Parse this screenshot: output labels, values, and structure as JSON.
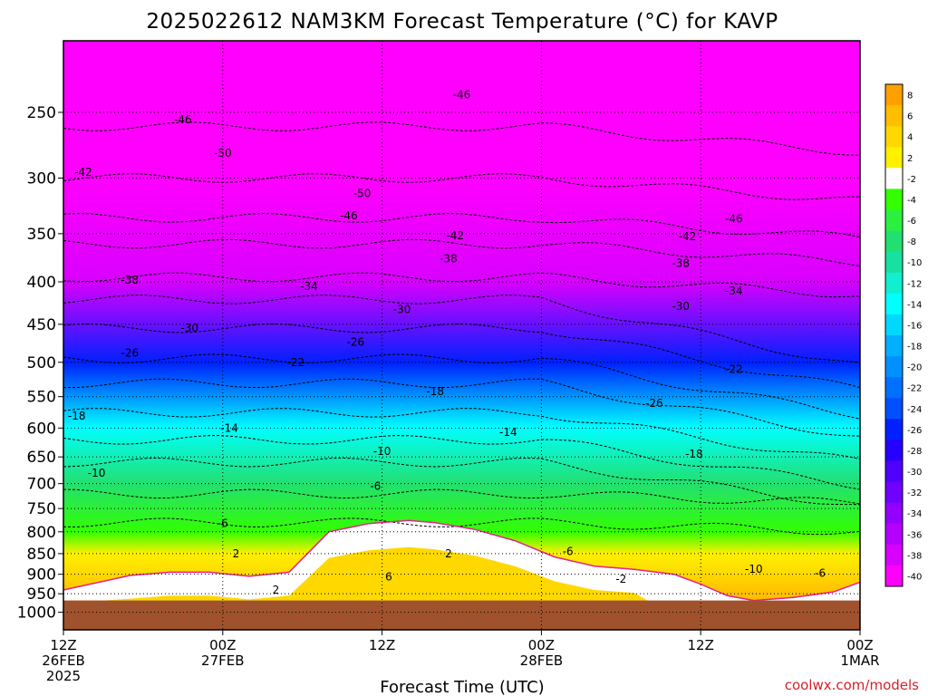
{
  "chart_data": {
    "type": "heatmap",
    "title": "2025022612 NAM3KM Forecast Temperature (°C) for KAVP",
    "xlabel": "Forecast Time (UTC)",
    "ylabel": "",
    "y_axis": {
      "quantity": "pressure (hPa)",
      "scale": "log",
      "inverted": true,
      "range": [
        1050,
        205
      ],
      "ticks": [
        250,
        300,
        350,
        400,
        450,
        500,
        550,
        600,
        650,
        700,
        750,
        800,
        850,
        900,
        950,
        1000
      ]
    },
    "x_axis": {
      "range_hours": [
        0,
        60
      ],
      "ticks": [
        {
          "hour": 0,
          "lines": [
            "12Z",
            "26FEB",
            "2025"
          ]
        },
        {
          "hour": 12,
          "lines": [
            "00Z",
            "27FEB"
          ]
        },
        {
          "hour": 24,
          "lines": [
            "12Z"
          ]
        },
        {
          "hour": 36,
          "lines": [
            "00Z",
            "28FEB"
          ]
        },
        {
          "hour": 48,
          "lines": [
            "12Z"
          ]
        },
        {
          "hour": 60,
          "lines": [
            "00Z",
            "1MAR"
          ]
        }
      ]
    },
    "grid": "dotted",
    "legend": "right colorbar",
    "colorbar": {
      "labels": [
        "8",
        "6",
        "4",
        "2",
        "-2",
        "-4",
        "-6",
        "-8",
        "-10",
        "-12",
        "-14",
        "-16",
        "-18",
        "-20",
        "-22",
        "-24",
        "-26",
        "-28",
        "-30",
        "-32",
        "-34",
        "-36",
        "-38",
        "-40"
      ],
      "colors": [
        "#ffa000",
        "#ffbe00",
        "#ffd800",
        "#fff000",
        "#ffffff",
        "#33ff00",
        "#2cf040",
        "#22e070",
        "#18e0a0",
        "#10f0d0",
        "#00ffff",
        "#00d8ff",
        "#00b0ff",
        "#0090ff",
        "#0070ff",
        "#0050ff",
        "#0020ff",
        "#2600ff",
        "#5000ff",
        "#7000ff",
        "#9400ff",
        "#b600ff",
        "#d800ff",
        "#ff00ff"
      ]
    },
    "series": [
      {
        "name": "freezing (0°C) line",
        "color": "#e8208c",
        "points": [
          [
            0,
            940
          ],
          [
            2,
            925
          ],
          [
            5,
            903
          ],
          [
            8,
            895
          ],
          [
            11,
            895
          ],
          [
            14,
            905
          ],
          [
            17,
            895
          ],
          [
            20,
            800
          ],
          [
            23,
            782
          ],
          [
            26,
            775
          ],
          [
            28,
            780
          ],
          [
            31,
            795
          ],
          [
            34,
            820
          ],
          [
            37,
            858
          ],
          [
            40,
            880
          ],
          [
            43,
            888
          ],
          [
            46,
            900
          ],
          [
            48,
            925
          ],
          [
            50,
            955
          ],
          [
            52,
            968
          ],
          [
            55,
            960
          ],
          [
            58,
            945
          ],
          [
            60,
            920
          ]
        ]
      },
      {
        "name": "surface",
        "color": "#a0522d",
        "values_hPa": 968
      }
    ],
    "temperature_profile_sample": {
      "pressure_hPa": [
        300,
        400,
        500,
        600,
        700,
        800,
        850,
        900,
        950
      ],
      "temperature_C": [
        -50,
        -38,
        -26,
        -14,
        -8,
        -4,
        2,
        4,
        6
      ]
    },
    "contour_labels": [
      {
        "text": "-46",
        "t": 9,
        "p": 255
      },
      {
        "text": "-50",
        "t": 12,
        "p": 280
      },
      {
        "text": "-42",
        "t": 1.5,
        "p": 295
      },
      {
        "text": "-50",
        "t": 22.5,
        "p": 313
      },
      {
        "text": "-46",
        "t": 21.5,
        "p": 333
      },
      {
        "text": "-46",
        "t": 30,
        "p": 238
      },
      {
        "text": "-46",
        "t": 50.5,
        "p": 336
      },
      {
        "text": "-42",
        "t": 29.5,
        "p": 352
      },
      {
        "text": "-42",
        "t": 47,
        "p": 353
      },
      {
        "text": "-38",
        "t": 29,
        "p": 375
      },
      {
        "text": "-38",
        "t": 46.5,
        "p": 380
      },
      {
        "text": "-38",
        "t": 5,
        "p": 398
      },
      {
        "text": "-34",
        "t": 18.5,
        "p": 405
      },
      {
        "text": "-34",
        "t": 50.5,
        "p": 410
      },
      {
        "text": "-30",
        "t": 25.5,
        "p": 432
      },
      {
        "text": "-30",
        "t": 46.5,
        "p": 428
      },
      {
        "text": "-30",
        "t": 9.5,
        "p": 455
      },
      {
        "text": "-26",
        "t": 22,
        "p": 473
      },
      {
        "text": "-26",
        "t": 5,
        "p": 487
      },
      {
        "text": "-22",
        "t": 17.5,
        "p": 500
      },
      {
        "text": "-22",
        "t": 50.5,
        "p": 510
      },
      {
        "text": "-18",
        "t": 28,
        "p": 542
      },
      {
        "text": "-18",
        "t": 1,
        "p": 580
      },
      {
        "text": "-26",
        "t": 44.5,
        "p": 560
      },
      {
        "text": "-14",
        "t": 12.5,
        "p": 600
      },
      {
        "text": "-14",
        "t": 33.5,
        "p": 607
      },
      {
        "text": "-18",
        "t": 47.5,
        "p": 645
      },
      {
        "text": "-10",
        "t": 24,
        "p": 640
      },
      {
        "text": "-10",
        "t": 2.5,
        "p": 680
      },
      {
        "text": "-6",
        "t": 23.5,
        "p": 705
      },
      {
        "text": "-6",
        "t": 12,
        "p": 782
      },
      {
        "text": "2",
        "t": 13,
        "p": 850
      },
      {
        "text": "2",
        "t": 29,
        "p": 850
      },
      {
        "text": "-6",
        "t": 38,
        "p": 845
      },
      {
        "text": "2",
        "t": 16,
        "p": 940
      },
      {
        "text": "6",
        "t": 24.5,
        "p": 907
      },
      {
        "text": "-2",
        "t": 42,
        "p": 912
      },
      {
        "text": "-10",
        "t": 52,
        "p": 887
      },
      {
        "text": "-6",
        "t": 57,
        "p": 897
      }
    ]
  },
  "credit": "coolwx.com/models"
}
